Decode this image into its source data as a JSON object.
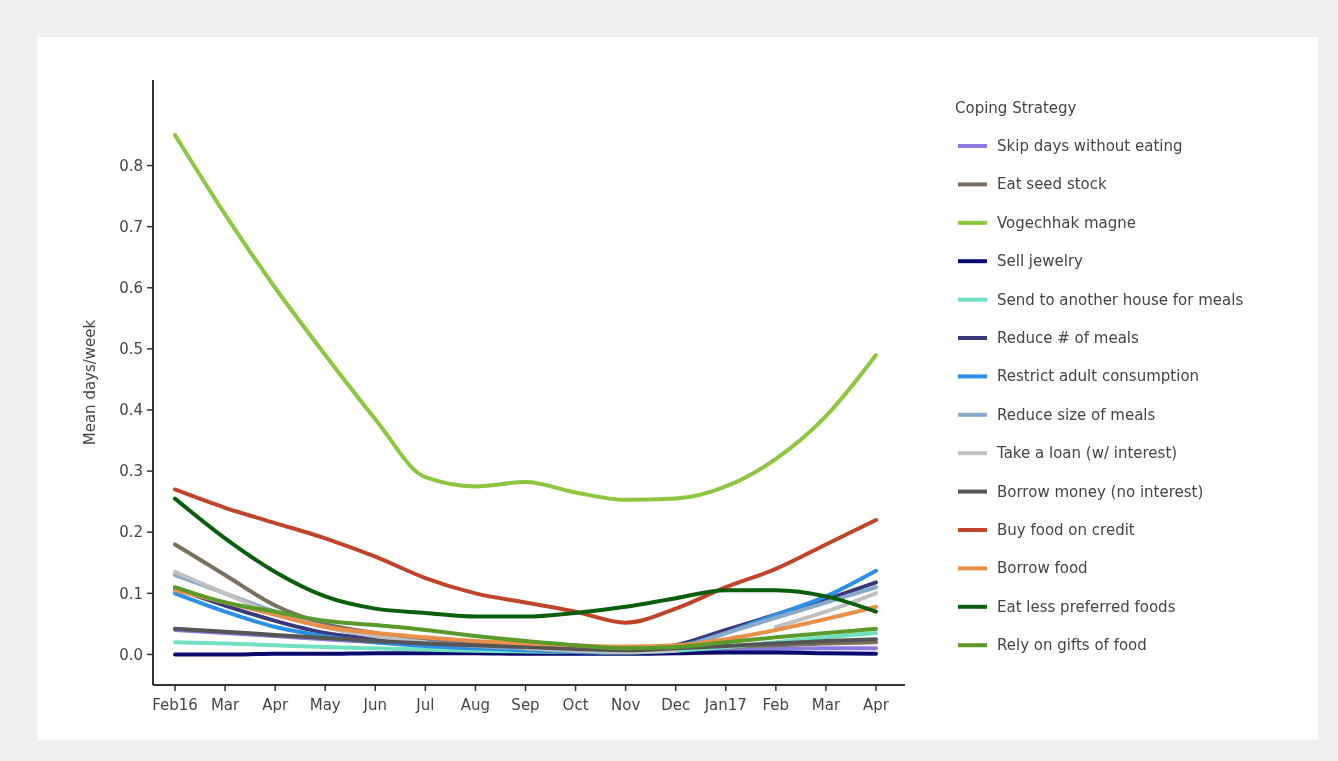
{
  "chart_data": {
    "type": "line",
    "ylabel": "Mean days/week",
    "legend_title": "Coping Strategy",
    "legend": "right",
    "grid": false,
    "marker": "none",
    "line_style": "solid",
    "categories": [
      "Feb16",
      "Mar",
      "Apr",
      "May",
      "Jun",
      "Jul",
      "Aug",
      "Sep",
      "Oct",
      "Nov",
      "Dec",
      "Jan17",
      "Feb",
      "Mar",
      "Apr"
    ],
    "ylim": [
      -0.05,
      0.94
    ],
    "yticks": [
      {
        "value": 0,
        "label": "0.0"
      },
      0.1,
      0.2,
      0.3,
      0.4,
      0.5,
      0.6,
      0.7,
      0.8
    ],
    "series": [
      {
        "name": "Skip days without eating",
        "color": "#8a7ae0",
        "values": [
          0.04,
          0.035,
          0.03,
          0.025,
          0.02,
          0.015,
          0.01,
          0.007,
          0.005,
          0.004,
          0.005,
          0.007,
          0.009,
          0.01,
          0.01
        ]
      },
      {
        "name": "Eat seed stock",
        "color": "#7a7060",
        "values": [
          0.18,
          0.13,
          0.08,
          0.05,
          0.035,
          0.025,
          0.018,
          0.012,
          0.008,
          0.005,
          0.007,
          0.012,
          0.015,
          0.018,
          0.02
        ]
      },
      {
        "name": "Vogechhak magne",
        "color": "#8dc63f",
        "values": [
          0.85,
          0.72,
          0.6,
          0.49,
          0.385,
          0.29,
          0.275,
          0.282,
          0.265,
          0.253,
          0.255,
          0.275,
          0.32,
          0.39,
          0.49
        ]
      },
      {
        "name": "Sell jewelry",
        "color": "#0a0a6e",
        "values": [
          0,
          0,
          0.001,
          0.001,
          0.002,
          0.002,
          0.002,
          0.001,
          0.001,
          0.001,
          0.002,
          0.003,
          0.003,
          0.002,
          0.001
        ]
      },
      {
        "name": "Send to another house for meals",
        "color": "#70e0c0",
        "values": [
          0.02,
          0.018,
          0.015,
          0.012,
          0.01,
          0.008,
          0.006,
          0.005,
          0.004,
          0.003,
          0.006,
          0.012,
          0.02,
          0.028,
          0.035
        ]
      },
      {
        "name": "Reduce # of meals",
        "color": "#3a3a7a",
        "values": [
          0.108,
          0.08,
          0.055,
          0.035,
          0.025,
          0.018,
          0.012,
          0.008,
          0.005,
          0.005,
          0.015,
          0.04,
          0.065,
          0.09,
          0.118
        ]
      },
      {
        "name": "Restrict adult consumption",
        "color": "#2b8fe6",
        "values": [
          0.1,
          0.07,
          0.045,
          0.03,
          0.02,
          0.014,
          0.01,
          0.007,
          0.005,
          0.004,
          0.012,
          0.035,
          0.065,
          0.095,
          0.137
        ]
      },
      {
        "name": "Reduce size of meals",
        "color": "#8aa8c8",
        "values": [
          0.13,
          0.1,
          0.07,
          0.045,
          0.03,
          0.02,
          0.014,
          0.01,
          0.006,
          0.004,
          0.01,
          0.035,
          0.06,
          0.085,
          0.11
        ]
      },
      {
        "name": "Take a loan (w/ interest)",
        "color": "#c0c0c0",
        "values": [
          0.135,
          0.1,
          0.065,
          0.045,
          0.03,
          0.02,
          null,
          0.01,
          0.006,
          0.004,
          0.006,
          null,
          0.045,
          0.07,
          0.1
        ]
      },
      {
        "name": "Borrow money (no interest)",
        "color": "#555555",
        "values": [
          0.042,
          0.037,
          0.032,
          0.027,
          0.022,
          0.018,
          0.015,
          0.012,
          0.009,
          0.007,
          0.01,
          0.014,
          0.018,
          0.022,
          0.025
        ]
      },
      {
        "name": "Buy food on credit",
        "color": "#c0442b",
        "values": [
          0.27,
          0.24,
          0.215,
          0.19,
          0.16,
          0.125,
          0.1,
          0.085,
          0.07,
          0.052,
          0.075,
          0.11,
          0.14,
          0.18,
          0.22
        ]
      },
      {
        "name": "Borrow food",
        "color": "#e8904a",
        "values": [
          0.105,
          0.085,
          0.065,
          0.045,
          0.035,
          0.028,
          0.022,
          0.018,
          0.015,
          0.013,
          0.015,
          0.025,
          0.04,
          0.058,
          0.078
        ]
      },
      {
        "name": "Eat less preferred foods",
        "color": "#0b5e0b",
        "values": [
          0.255,
          0.19,
          0.135,
          0.095,
          0.075,
          0.068,
          0.062,
          0.062,
          0.068,
          0.078,
          0.092,
          0.105,
          0.105,
          0.095,
          0.07
        ]
      },
      {
        "name": "Rely on gifts of food",
        "color": "#5a9a2a",
        "values": [
          0.11,
          0.085,
          0.07,
          0.055,
          0.048,
          0.04,
          0.03,
          0.022,
          0.015,
          0.01,
          0.012,
          0.02,
          0.028,
          0.035,
          0.042
        ]
      }
    ]
  }
}
